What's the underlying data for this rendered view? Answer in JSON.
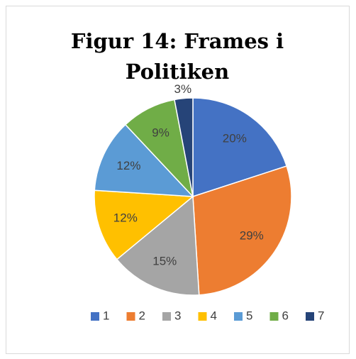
{
  "chart_data": {
    "type": "pie",
    "title_lines": [
      "Figur 14: Frames i",
      "Politiken"
    ],
    "categories": [
      "1",
      "2",
      "3",
      "4",
      "5",
      "6",
      "7"
    ],
    "values": [
      20,
      29,
      15,
      12,
      12,
      9,
      3
    ],
    "value_labels": [
      "20%",
      "29%",
      "15%",
      "12%",
      "12%",
      "9%",
      "3%"
    ],
    "colors": [
      "#4472c4",
      "#ed7d31",
      "#a5a5a5",
      "#ffc000",
      "#5b9bd5",
      "#70ad47",
      "#264478"
    ],
    "legend": "bottom"
  }
}
